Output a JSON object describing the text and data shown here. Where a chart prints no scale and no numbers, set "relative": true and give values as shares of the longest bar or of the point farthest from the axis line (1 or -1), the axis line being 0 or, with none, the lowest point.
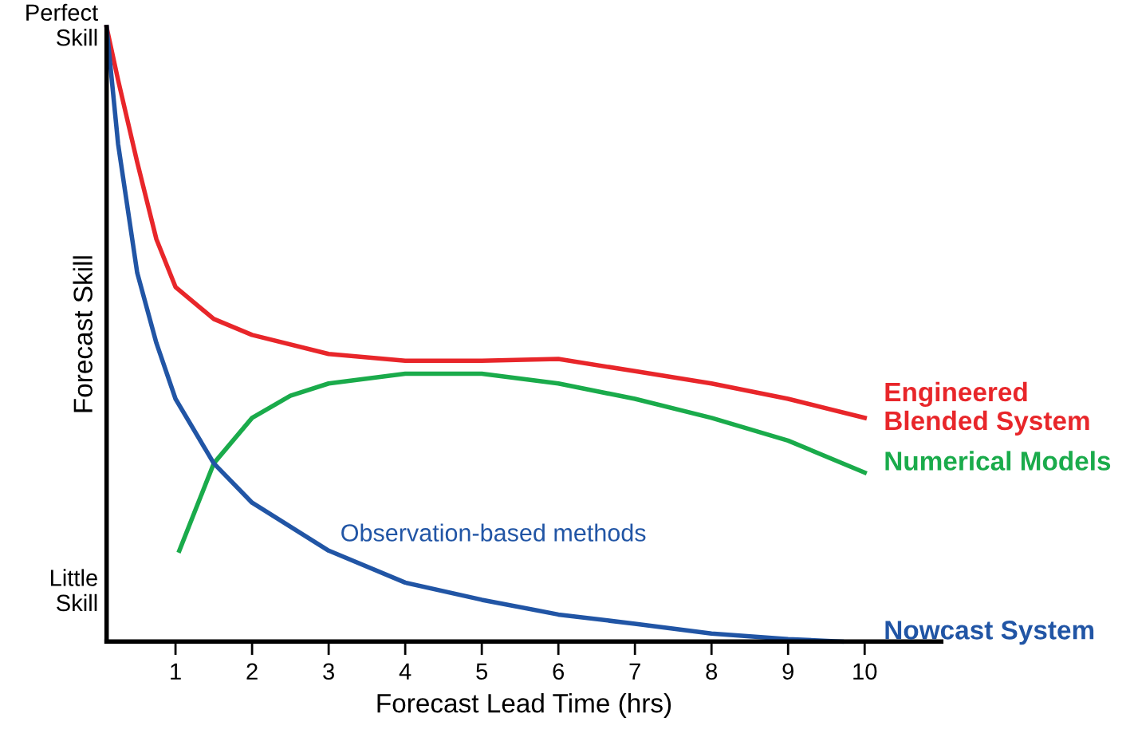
{
  "chart_data": {
    "type": "line",
    "relative": true,
    "xlabel": "Forecast Lead Time (hrs)",
    "ylabel": "Forecast Skill",
    "xlim": [
      0.1,
      11
    ],
    "xticks": [
      1,
      2,
      3,
      4,
      5,
      6,
      7,
      8,
      9,
      10
    ],
    "grid": false,
    "legend": false,
    "marker": "none",
    "line_style": "solid",
    "annotations": [
      "Perfect\nSkill",
      "Little\nSkill",
      "Observation-based methods"
    ],
    "series": [
      {
        "name": "Engineered\nBlended System",
        "color": "#e8262a",
        "x": [
          0.1,
          0.25,
          0.5,
          0.75,
          1,
          1.5,
          2,
          3,
          4,
          5,
          6,
          7,
          8,
          9,
          10
        ],
        "values": [
          1,
          0.914,
          0.78,
          0.655,
          0.577,
          0.525,
          0.499,
          0.468,
          0.457,
          0.457,
          0.46,
          0.44,
          0.42,
          0.395,
          0.364
        ]
      },
      {
        "name": "Numerical Models",
        "color": "#1aab4b",
        "x": [
          1.05,
          1.5,
          2,
          2.5,
          3,
          4,
          5,
          6,
          7,
          8,
          9,
          10
        ],
        "values": [
          0.148,
          0.29,
          0.364,
          0.4,
          0.42,
          0.436,
          0.436,
          0.42,
          0.395,
          0.364,
          0.327,
          0.275
        ]
      },
      {
        "name": "Nowcast System",
        "color": "#2155a5",
        "x": [
          0.1,
          0.25,
          0.5,
          0.75,
          1,
          1.5,
          2,
          3,
          4,
          5,
          6,
          7,
          8,
          9,
          9.7
        ],
        "values": [
          1,
          0.81,
          0.6,
          0.486,
          0.395,
          0.29,
          0.226,
          0.148,
          0.096,
          0.068,
          0.044,
          0.029,
          0.013,
          0.004,
          0
        ]
      }
    ]
  }
}
